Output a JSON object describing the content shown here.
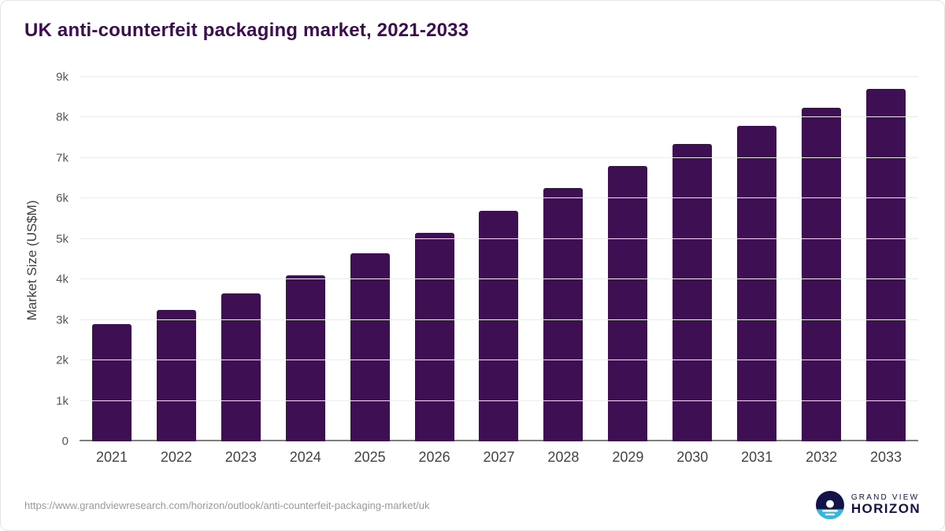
{
  "header": {
    "title": "UK anti-counterfeit packaging market, 2021-2033"
  },
  "chart_data": {
    "type": "bar",
    "title": "UK anti-counterfeit packaging market, 2021-2033",
    "categories": [
      "2021",
      "2022",
      "2023",
      "2024",
      "2025",
      "2026",
      "2027",
      "2028",
      "2029",
      "2030",
      "2031",
      "2032",
      "2033"
    ],
    "values": [
      2900,
      3250,
      3650,
      4100,
      4650,
      5150,
      5700,
      6250,
      6800,
      7350,
      7800,
      8250,
      8700
    ],
    "xlabel": "",
    "ylabel": "Market Size (US$M)",
    "ylim": [
      0,
      9000
    ],
    "yticks": [
      0,
      1000,
      2000,
      3000,
      4000,
      5000,
      6000,
      7000,
      8000,
      9000
    ],
    "ytick_labels": [
      "0",
      "1k",
      "2k",
      "3k",
      "4k",
      "5k",
      "6k",
      "7k",
      "8k",
      "9k"
    ],
    "bar_color": "#3e0f53",
    "grid": true,
    "legend": false
  },
  "colors": {
    "accent_purple": "#3e0f53",
    "logo_navy": "#13134a",
    "logo_teal": "#2fb9e0",
    "gridline": "#ebebeb",
    "axis_line": "#7f7f7f"
  },
  "footer": {
    "source_url": "https://www.grandviewresearch.com/horizon/outlook/anti-counterfeit-packaging-market/uk",
    "logo": {
      "top": "GRAND VIEW",
      "bottom": "HORIZON"
    }
  }
}
